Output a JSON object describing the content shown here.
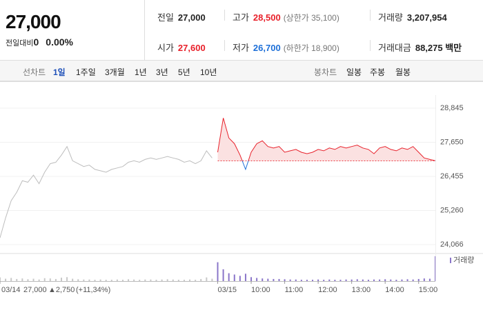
{
  "quote": {
    "price": "27,000",
    "change_label": "전일대비",
    "change": "0",
    "change_rate": "0.00%",
    "rows": [
      [
        {
          "label": "전일",
          "value": "27,000"
        },
        {
          "label": "고가",
          "value": "28,500",
          "note": "(상한가 35,100)"
        },
        {
          "label": "거래량",
          "value": "3,207,954"
        }
      ],
      [
        {
          "label": "시가",
          "value": "27,600"
        },
        {
          "label": "저가",
          "value": "26,700",
          "note": "(하한가 18,900)"
        },
        {
          "label": "거래대금",
          "value": "88,275 백만"
        }
      ]
    ]
  },
  "tabs": {
    "line_label": "선차트",
    "line_tabs": [
      "1일",
      "1주일",
      "3개월",
      "1년",
      "3년",
      "5년",
      "10년"
    ],
    "selected": 0,
    "candle_label": "봉차트",
    "candle_tabs": [
      "일봉",
      "주봉",
      "월봉"
    ]
  },
  "chart_data": [
    {
      "type": "line",
      "xlim": [
        0,
        780
      ],
      "ylim": [
        24066,
        28845
      ],
      "yticks": [
        {
          "value": 24066,
          "label": "24,066"
        },
        {
          "value": 25260,
          "label": "25,260"
        },
        {
          "value": 26455,
          "label": "26,455"
        },
        {
          "value": 27650,
          "label": "27,650"
        },
        {
          "value": 28845,
          "label": "28,845"
        }
      ],
      "grid": true,
      "baseline": 27000,
      "down_color": "#1d6fd8",
      "series": [
        {
          "color": "#bdbdbd",
          "x": [
            0,
            10,
            20,
            30,
            40,
            50,
            60,
            70,
            80,
            90,
            100,
            110,
            120,
            130,
            140,
            150,
            160,
            170,
            180,
            190,
            200,
            210,
            220,
            230,
            240,
            250,
            260,
            270,
            280,
            290,
            300,
            310,
            320,
            330,
            340,
            350,
            360,
            370,
            380
          ],
          "values": [
            24300,
            25000,
            25600,
            25900,
            26300,
            26250,
            26500,
            26200,
            26600,
            26900,
            26950,
            27200,
            27500,
            27000,
            26900,
            26800,
            26850,
            26700,
            26650,
            26600,
            26700,
            26750,
            26800,
            26950,
            27000,
            26950,
            27050,
            27100,
            27050,
            27100,
            27150,
            27100,
            27050,
            26950,
            27000,
            26900,
            27000,
            27350,
            27100
          ]
        },
        {
          "color": "#e8202a",
          "x": [
            390,
            400,
            410,
            420,
            430,
            440,
            450,
            460,
            470,
            480,
            490,
            500,
            510,
            520,
            530,
            540,
            550,
            560,
            570,
            580,
            590,
            600,
            610,
            620,
            630,
            640,
            650,
            660,
            670,
            680,
            690,
            700,
            710,
            720,
            730,
            740,
            750,
            760,
            770,
            780
          ],
          "values": [
            27300,
            28500,
            27800,
            27600,
            27200,
            26700,
            27300,
            27600,
            27700,
            27500,
            27450,
            27500,
            27300,
            27350,
            27400,
            27300,
            27250,
            27300,
            27400,
            27350,
            27450,
            27400,
            27500,
            27450,
            27500,
            27550,
            27450,
            27400,
            27250,
            27450,
            27500,
            27400,
            27350,
            27450,
            27400,
            27500,
            27300,
            27100,
            27050,
            27000
          ]
        }
      ]
    },
    {
      "type": "bar",
      "xlim": [
        0,
        780
      ],
      "ylim": [
        0,
        100
      ],
      "xticks": [
        {
          "value": 0,
          "label": "03/14"
        },
        {
          "value": 390,
          "label": "03/15"
        },
        {
          "value": 450,
          "label": "10:00"
        },
        {
          "value": 510,
          "label": "11:00"
        },
        {
          "value": 570,
          "label": "12:00"
        },
        {
          "value": 630,
          "label": "13:00"
        },
        {
          "value": 690,
          "label": "14:00"
        },
        {
          "value": 750,
          "label": "15:00"
        }
      ],
      "annotation": {
        "price": "27,000",
        "change": "▲2,750",
        "rate": "(+11,34%)"
      },
      "series": [
        {
          "color": "#c8c8c8",
          "x": [
            0,
            10,
            20,
            30,
            40,
            50,
            60,
            70,
            80,
            90,
            100,
            110,
            120,
            130,
            140,
            150,
            160,
            170,
            180,
            190,
            200,
            210,
            220,
            230,
            240,
            250,
            260,
            270,
            280,
            290,
            300,
            310,
            320,
            330,
            340,
            350,
            360,
            370,
            380
          ],
          "values": [
            14,
            9,
            12,
            8,
            10,
            7,
            9,
            6,
            11,
            10,
            8,
            13,
            15,
            9,
            7,
            6,
            6,
            5,
            6,
            5,
            5,
            6,
            5,
            7,
            6,
            5,
            6,
            6,
            5,
            6,
            7,
            6,
            5,
            5,
            6,
            5,
            8,
            14,
            9
          ]
        },
        {
          "name": "거래량",
          "color": "#8a75c9",
          "x": [
            390,
            400,
            410,
            420,
            430,
            440,
            450,
            460,
            470,
            480,
            490,
            500,
            510,
            520,
            530,
            540,
            550,
            560,
            570,
            580,
            590,
            600,
            610,
            620,
            630,
            640,
            650,
            660,
            670,
            680,
            690,
            700,
            710,
            720,
            730,
            740,
            750,
            760,
            770,
            780
          ],
          "values": [
            72,
            45,
            30,
            25,
            20,
            28,
            15,
            12,
            10,
            9,
            8,
            8,
            7,
            6,
            6,
            5,
            5,
            5,
            6,
            5,
            6,
            5,
            5,
            6,
            6,
            7,
            6,
            5,
            6,
            6,
            7,
            6,
            5,
            6,
            7,
            6,
            8,
            10,
            9,
            95
          ]
        }
      ]
    }
  ]
}
